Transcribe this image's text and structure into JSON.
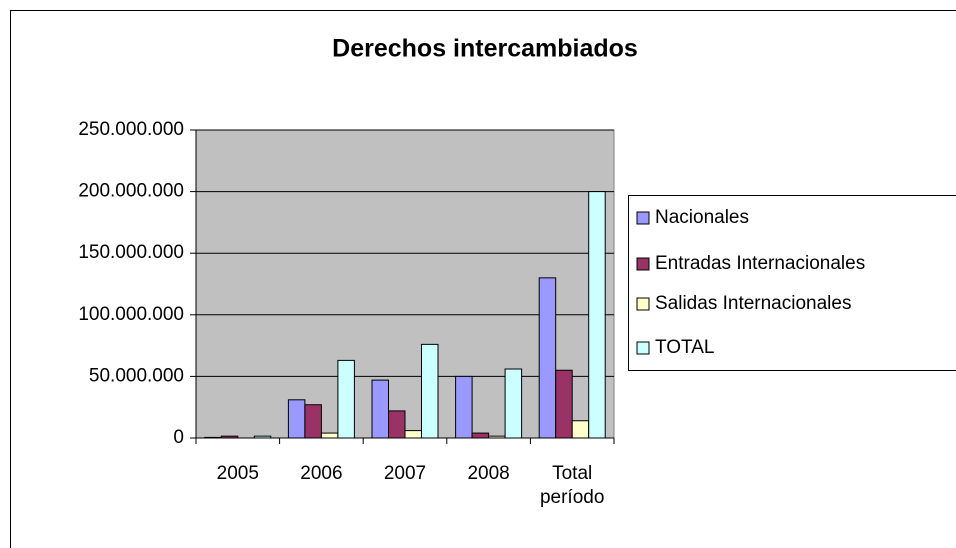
{
  "chart_data": {
    "type": "bar",
    "title": "Derechos intercambiados",
    "categories": [
      "2005",
      "2006",
      "2007",
      "2008",
      "Total período"
    ],
    "series": [
      {
        "name": "Nacionales",
        "color": "#9999ff",
        "values": [
          500000,
          31000000,
          47000000,
          50000000,
          130000000
        ]
      },
      {
        "name": "Entradas Internacionales",
        "color": "#993366",
        "values": [
          1500000,
          27000000,
          22000000,
          4000000,
          55000000
        ]
      },
      {
        "name": "Salidas Internacionales",
        "color": "#ffffcc",
        "values": [
          0,
          4000000,
          6000000,
          1500000,
          14000000
        ]
      },
      {
        "name": "TOTAL",
        "color": "#ccffff",
        "values": [
          1500000,
          63000000,
          76000000,
          56000000,
          200000000
        ]
      }
    ],
    "ylim": [
      0,
      250000000
    ],
    "yticks": [
      0,
      {
        "value": 50000000,
        "label": "50.000.000"
      },
      {
        "value": 100000000,
        "label": "100.000.000"
      },
      {
        "value": 150000000,
        "label": "150.000.000"
      },
      {
        "value": 200000000,
        "label": "200.000.000"
      },
      {
        "value": 250000000,
        "label": "250.000.000"
      }
    ],
    "grid": true,
    "legend": "right"
  }
}
